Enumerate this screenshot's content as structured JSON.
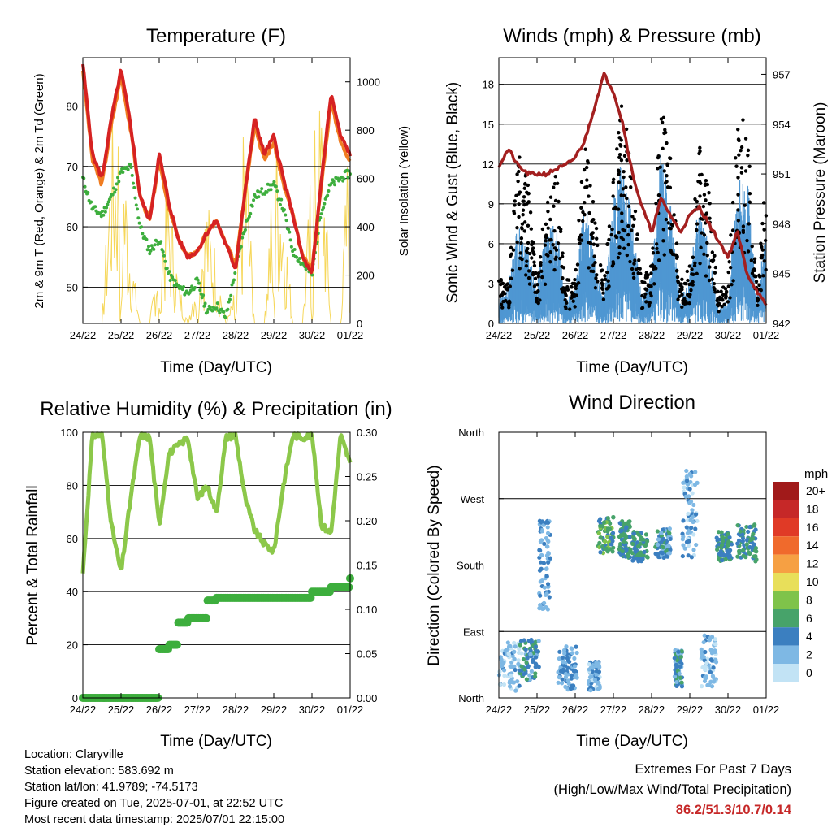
{
  "x_ticks": [
    "24/22",
    "25/22",
    "26/22",
    "27/22",
    "28/22",
    "29/22",
    "30/22",
    "01/22"
  ],
  "x_label": "Time (Day/UTC)",
  "colors": {
    "temp_2m": "#d62222",
    "temp_9m": "#f07d21",
    "dewpoint": "#3dae3d",
    "solar": "#f6d75a",
    "gust": "#000000",
    "wind": "#4f97d2",
    "pressure": "#a31f1f",
    "rh": "#8cc84a",
    "precip": "#3dae3d",
    "extremes": "#c62828"
  },
  "panels": {
    "temperature": {
      "title": "Temperature (F)",
      "ylabel_left": "2m & 9m T (Red, Orange) & 2m Td (Green)",
      "ylabel_right": "Solar Insolation (Yellow)",
      "yticks_left": [
        "50",
        "60",
        "70",
        "80"
      ],
      "yticks_right": [
        "0",
        "200",
        "400",
        "600",
        "800",
        "1000"
      ]
    },
    "winds": {
      "title": "Winds (mph) & Pressure (mb)",
      "ylabel_left": "Sonic Wind & Gust (Blue, Black)",
      "ylabel_right": "Station Pressure (Maroon)",
      "yticks_left": [
        "0",
        "3",
        "6",
        "9",
        "12",
        "15",
        "18"
      ],
      "yticks_right": [
        "942",
        "945",
        "948",
        "951",
        "954",
        "957"
      ]
    },
    "humidity": {
      "title": "Relative Humidity (%) & Precipitation (in)",
      "ylabel_left": "Percent & Total Rainfall",
      "yticks_left": [
        "0",
        "20",
        "40",
        "60",
        "80",
        "100"
      ],
      "yticks_right": [
        "0.00",
        "0.05",
        "0.10",
        "0.15",
        "0.20",
        "0.25",
        "0.30"
      ]
    },
    "direction": {
      "title": "Wind Direction",
      "ylabel_left": "Direction (Colored By Speed)",
      "yticks_left": [
        "North",
        "East",
        "South",
        "West",
        "North"
      ],
      "colorbar": {
        "title": "mph",
        "labels": [
          "20+",
          "18",
          "16",
          "14",
          "12",
          "10",
          "8",
          "6",
          "4",
          "2",
          "0"
        ],
        "colors": [
          "#a11a1a",
          "#c62828",
          "#e03a26",
          "#f06a2c",
          "#f6a043",
          "#e8df5a",
          "#7fc34a",
          "#47a36a",
          "#3b7fc0",
          "#7eb8e4",
          "#c2e3f5"
        ]
      }
    }
  },
  "chart_data": [
    {
      "type": "line",
      "title": "Temperature (F)",
      "xlabel": "Time (Day/UTC)",
      "ylabel": "2m & 9m T (Red, Orange) & 2m Td (Green)",
      "y2label": "Solar Insolation (Yellow)",
      "ylim": [
        44,
        88
      ],
      "y2lim": [
        0,
        1100
      ],
      "x": [
        0,
        0.25,
        0.5,
        0.75,
        1,
        1.25,
        1.5,
        1.75,
        2,
        2.25,
        2.5,
        2.75,
        3,
        3.25,
        3.5,
        3.75,
        4,
        4.25,
        4.5,
        4.75,
        5,
        5.25,
        5.5,
        5.75,
        6,
        6.25,
        6.5,
        6.75,
        7
      ],
      "series": [
        {
          "name": "2m T",
          "axis": "left",
          "values": [
            87,
            72,
            68,
            78,
            86,
            77,
            65,
            61,
            72,
            64,
            58,
            55,
            56,
            59,
            61,
            57,
            53,
            66,
            78,
            72,
            75,
            68,
            62,
            55,
            52,
            68,
            82,
            75,
            72
          ]
        },
        {
          "name": "9m T",
          "axis": "left",
          "values": [
            86,
            71,
            67,
            77,
            85,
            76,
            65,
            61,
            71,
            63,
            58,
            55,
            56,
            59,
            61,
            57,
            54,
            66,
            77,
            71,
            74,
            67,
            62,
            55,
            53,
            67,
            81,
            74,
            71
          ]
        },
        {
          "name": "2m Td",
          "axis": "left",
          "values": [
            68,
            63,
            62,
            65,
            69,
            70,
            60,
            56,
            58,
            52,
            50,
            49,
            51,
            46,
            47,
            45,
            53,
            60,
            65,
            66,
            67,
            63,
            56,
            54,
            52,
            63,
            67,
            68,
            69
          ]
        },
        {
          "name": "Solar Insolation",
          "axis": "right",
          "values": [
            0,
            0,
            0,
            850,
            950,
            350,
            0,
            0,
            400,
            600,
            200,
            0,
            300,
            550,
            300,
            0,
            150,
            950,
            0,
            0,
            900,
            600,
            0,
            0,
            750,
            1000,
            0,
            0,
            1050
          ]
        }
      ]
    },
    {
      "type": "line",
      "title": "Winds (mph) & Pressure (mb)",
      "xlabel": "Time (Day/UTC)",
      "ylabel": "Sonic Wind & Gust (Blue, Black)",
      "y2label": "Station Pressure (Maroon)",
      "ylim": [
        0,
        20
      ],
      "y2lim": [
        942,
        958
      ],
      "x": [
        0,
        0.25,
        0.5,
        0.75,
        1,
        1.25,
        1.5,
        1.75,
        2,
        2.25,
        2.5,
        2.75,
        3,
        3.25,
        3.5,
        3.75,
        4,
        4.25,
        4.5,
        4.75,
        5,
        5.25,
        5.5,
        5.75,
        6,
        6.25,
        6.5,
        6.75,
        7
      ],
      "series": [
        {
          "name": "Sonic Wind",
          "axis": "left",
          "values": [
            1,
            1.5,
            4,
            3,
            1.5,
            4,
            4,
            1,
            1.5,
            5,
            3,
            1,
            5,
            7,
            4,
            1,
            2,
            7,
            5,
            1,
            2,
            5,
            3,
            0.5,
            1,
            6,
            6,
            1,
            4
          ]
        },
        {
          "name": "Gust",
          "axis": "left",
          "values": [
            3,
            3,
            12,
            10,
            3,
            9,
            11,
            3,
            3,
            14,
            8,
            3,
            12,
            16,
            10,
            3,
            4,
            15,
            12,
            3,
            4,
            13,
            9,
            2,
            3,
            14,
            14,
            3,
            10
          ]
        },
        {
          "name": "Station Pressure",
          "axis": "right",
          "values": [
            951.5,
            952.5,
            951.5,
            951,
            951,
            951,
            951.3,
            951.5,
            952,
            953,
            955,
            957,
            956,
            954,
            951,
            949,
            947.5,
            949.5,
            948.5,
            947.5,
            948.5,
            949,
            948,
            947,
            946,
            947.5,
            945,
            944,
            943
          ]
        }
      ]
    },
    {
      "type": "line",
      "title": "Relative Humidity (%) & Precipitation (in)",
      "xlabel": "Time (Day/UTC)",
      "ylabel": "Percent & Total Rainfall",
      "ylim": [
        0,
        100
      ],
      "y2lim": [
        0,
        0.3
      ],
      "x": [
        0,
        0.25,
        0.5,
        0.75,
        1,
        1.25,
        1.5,
        1.75,
        2,
        2.25,
        2.5,
        2.75,
        3,
        3.25,
        3.5,
        3.75,
        4,
        4.25,
        4.5,
        4.75,
        5,
        5.25,
        5.5,
        5.75,
        6,
        6.25,
        6.5,
        6.75,
        7
      ],
      "series": [
        {
          "name": "Relative Humidity",
          "axis": "left",
          "values": [
            47,
            99,
            99,
            65,
            47,
            75,
            99,
            98,
            65,
            92,
            95,
            98,
            75,
            80,
            70,
            98,
            99,
            75,
            63,
            58,
            55,
            80,
            99,
            98,
            99,
            65,
            62,
            99,
            88
          ]
        },
        {
          "name": "Total Precipitation",
          "axis": "right",
          "values": [
            0,
            0,
            0,
            0,
            0,
            0,
            0,
            0,
            0.055,
            0.06,
            0.085,
            0.09,
            0.09,
            0.11,
            0.113,
            0.113,
            0.113,
            0.113,
            0.113,
            0.113,
            0.113,
            0.113,
            0.113,
            0.113,
            0.12,
            0.12,
            0.125,
            0.125,
            0.135
          ]
        }
      ]
    },
    {
      "type": "scatter",
      "title": "Wind Direction",
      "xlabel": "Time (Day/UTC)",
      "ylabel": "Direction (Colored By Speed)",
      "ylim": [
        0,
        360
      ],
      "clusters": [
        {
          "x": 0.3,
          "direction": 40,
          "spread_x": 0.3,
          "spread_y": 35,
          "speed": 1.5
        },
        {
          "x": 0.8,
          "direction": 50,
          "spread_x": 0.25,
          "spread_y": 30,
          "speed": 4
        },
        {
          "x": 1.2,
          "direction": 180,
          "spread_x": 0.15,
          "spread_y": 60,
          "speed": 3
        },
        {
          "x": 1.8,
          "direction": 40,
          "spread_x": 0.25,
          "spread_y": 30,
          "speed": 3
        },
        {
          "x": 2.5,
          "direction": 30,
          "spread_x": 0.15,
          "spread_y": 20,
          "speed": 2
        },
        {
          "x": 2.8,
          "direction": 220,
          "spread_x": 0.2,
          "spread_y": 25,
          "speed": 6
        },
        {
          "x": 3.3,
          "direction": 215,
          "spread_x": 0.15,
          "spread_y": 25,
          "speed": 5
        },
        {
          "x": 3.7,
          "direction": 205,
          "spread_x": 0.2,
          "spread_y": 20,
          "speed": 5
        },
        {
          "x": 4.3,
          "direction": 210,
          "spread_x": 0.2,
          "spread_y": 20,
          "speed": 4
        },
        {
          "x": 4.7,
          "direction": 40,
          "spread_x": 0.1,
          "spread_y": 25,
          "speed": 4
        },
        {
          "x": 5.0,
          "direction": 250,
          "spread_x": 0.2,
          "spread_y": 60,
          "speed": 2
        },
        {
          "x": 5.9,
          "direction": 205,
          "spread_x": 0.2,
          "spread_y": 20,
          "speed": 5
        },
        {
          "x": 6.5,
          "direction": 210,
          "spread_x": 0.25,
          "spread_y": 25,
          "speed": 5
        },
        {
          "x": 5.5,
          "direction": 50,
          "spread_x": 0.2,
          "spread_y": 35,
          "speed": 1.5
        }
      ]
    }
  ],
  "footer": {
    "location": "Location: Claryville",
    "elevation": "Station elevation: 583.692 m",
    "latlon": "Station lat/lon: 41.9789; -74.5173",
    "created": "Figure created on Tue, 2025-07-01, at 22:52 UTC",
    "recent": "Most recent data timestamp: 2025/07/01 22:15:00"
  },
  "extremes": {
    "title": "Extremes For Past 7 Days",
    "subtitle": "(High/Low/Max Wind/Total Precipitation)",
    "values": "86.2/51.3/10.7/0.14"
  }
}
